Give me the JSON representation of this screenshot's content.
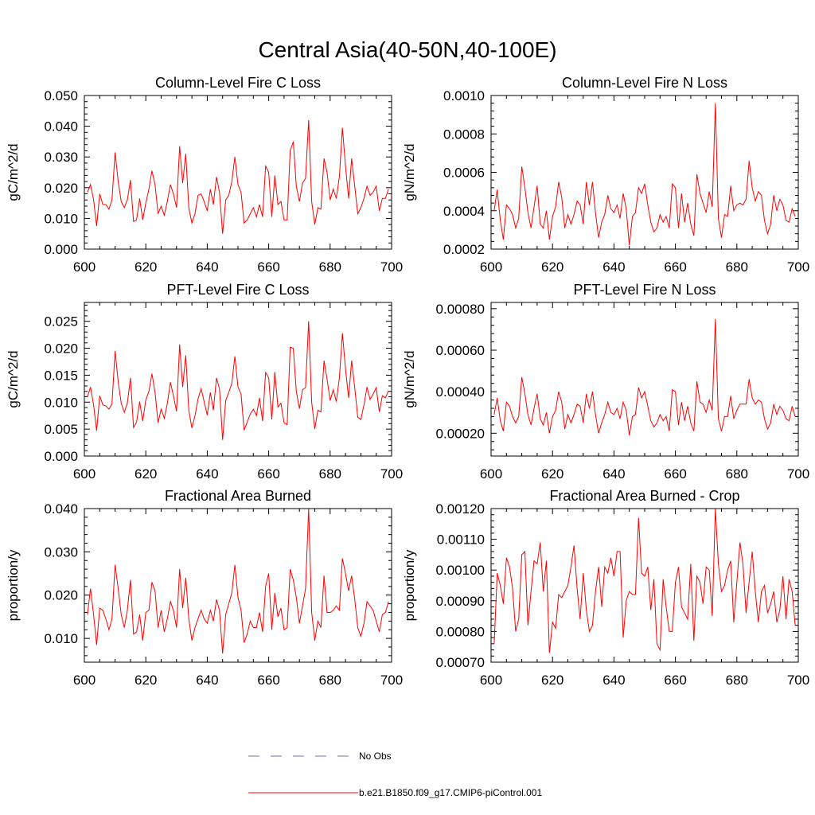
{
  "figure": {
    "title": "Central Asia(40-50N,40-100E)"
  },
  "legend": {
    "items": [
      {
        "label": "No Obs",
        "color": "#6b6bd6",
        "style": "dashed"
      },
      {
        "label": "b.e21.B1850.f09_g17.CMIP6-piControl.001",
        "color": "#ff0000",
        "style": "solid"
      }
    ]
  },
  "chart_data": [
    {
      "type": "line",
      "title": "Column-Level Fire C Loss",
      "ylabel": "gC/m^2/d",
      "xlim": [
        600,
        700
      ],
      "ylim": [
        0,
        0.05
      ],
      "xticks": [
        600,
        620,
        640,
        660,
        680,
        700
      ],
      "xtick_labels": [
        "600",
        "620",
        "640",
        "660",
        "680",
        "700"
      ],
      "yticks": [
        0,
        0.01,
        0.02,
        0.03,
        0.04,
        0.05
      ],
      "ytick_labels": [
        "0.000",
        "0.010",
        "0.020",
        "0.030",
        "0.040",
        "0.050"
      ],
      "x_start": 601,
      "series": [
        {
          "color": "#ff0000",
          "values": [
            0.0185,
            0.021,
            0.016,
            0.0075,
            0.018,
            0.0145,
            0.0145,
            0.013,
            0.016,
            0.0315,
            0.022,
            0.0155,
            0.0135,
            0.016,
            0.0225,
            0.009,
            0.0095,
            0.0165,
            0.0095,
            0.015,
            0.0195,
            0.0255,
            0.021,
            0.0115,
            0.014,
            0.011,
            0.0155,
            0.021,
            0.018,
            0.0135,
            0.0335,
            0.0215,
            0.031,
            0.0135,
            0.0085,
            0.0115,
            0.0175,
            0.018,
            0.0155,
            0.0125,
            0.0195,
            0.0145,
            0.0235,
            0.0185,
            0.005,
            0.016,
            0.0175,
            0.022,
            0.03,
            0.021,
            0.0185,
            0.0085,
            0.0095,
            0.0115,
            0.0135,
            0.0105,
            0.0145,
            0.0105,
            0.027,
            0.025,
            0.0105,
            0.024,
            0.0145,
            0.0155,
            0.0095,
            0.0095,
            0.032,
            0.035,
            0.0205,
            0.0155,
            0.0215,
            0.023,
            0.042,
            0.0155,
            0.008,
            0.0135,
            0.013,
            0.0295,
            0.025,
            0.016,
            0.0195,
            0.0165,
            0.0235,
            0.0395,
            0.027,
            0.0165,
            0.0295,
            0.0205,
            0.0115,
            0.0135,
            0.0165,
            0.0205,
            0.0175,
            0.0185,
            0.0205,
            0.0125,
            0.0165,
            0.0165,
            0.0195
          ]
        }
      ]
    },
    {
      "type": "line",
      "title": "Column-Level Fire N Loss",
      "ylabel": "gN/m^2/d",
      "xlim": [
        600,
        700
      ],
      "ylim": [
        0.0002,
        0.001
      ],
      "xticks": [
        600,
        620,
        640,
        660,
        680,
        700
      ],
      "xtick_labels": [
        "600",
        "620",
        "640",
        "660",
        "680",
        "700"
      ],
      "yticks": [
        0.0002,
        0.0004,
        0.0006,
        0.0008,
        0.001
      ],
      "ytick_labels": [
        "0.0002",
        "0.0004",
        "0.0006",
        "0.0008",
        "0.0010"
      ],
      "x_start": 601,
      "series": [
        {
          "color": "#ff0000",
          "values": [
            0.0004,
            0.00051,
            0.00035,
            0.00025,
            0.00043,
            0.00041,
            0.00038,
            0.00031,
            0.00036,
            0.00063,
            0.00052,
            0.00039,
            0.00031,
            0.00042,
            0.00053,
            0.00033,
            0.00031,
            0.0004,
            0.00025,
            0.00037,
            0.00042,
            0.00055,
            0.00047,
            0.00031,
            0.00038,
            0.00033,
            0.00038,
            0.00045,
            0.00043,
            0.00033,
            0.00055,
            0.00043,
            0.00055,
            0.00039,
            0.00026,
            0.00034,
            0.00038,
            0.00048,
            0.00041,
            0.00039,
            0.00043,
            0.00036,
            0.00049,
            0.00041,
            0.00022,
            0.00037,
            0.00039,
            0.00052,
            0.00049,
            0.00054,
            0.00043,
            0.00034,
            0.00029,
            0.00031,
            0.00038,
            0.00034,
            0.00037,
            0.00031,
            0.00054,
            0.00052,
            0.00031,
            0.00049,
            0.00034,
            0.00044,
            0.00033,
            0.00027,
            0.00059,
            0.00049,
            0.00044,
            0.00039,
            0.0005,
            0.00042,
            0.00096,
            0.00036,
            0.00026,
            0.00038,
            0.00037,
            0.00053,
            0.0004,
            0.00043,
            0.00044,
            0.00043,
            0.00046,
            0.00066,
            0.00052,
            0.00045,
            0.0005,
            0.00048,
            0.00035,
            0.00028,
            0.00033,
            0.00048,
            0.0004,
            0.00046,
            0.00043,
            0.00035,
            0.00034,
            0.00041,
            0.00037
          ]
        }
      ]
    },
    {
      "type": "line",
      "title": "PFT-Level Fire C Loss",
      "ylabel": "gC/m^2/d",
      "xlim": [
        600,
        700
      ],
      "ylim": [
        0,
        0.0285
      ],
      "xticks": [
        600,
        620,
        640,
        660,
        680,
        700
      ],
      "xtick_labels": [
        "600",
        "620",
        "640",
        "660",
        "680",
        "700"
      ],
      "yticks": [
        0,
        0.005,
        0.01,
        0.015,
        0.02,
        0.025
      ],
      "ytick_labels": [
        "0.000",
        "0.005",
        "0.010",
        "0.015",
        "0.020",
        "0.025"
      ],
      "x_start": 601,
      "series": [
        {
          "color": "#ff0000",
          "values": [
            0.011,
            0.0128,
            0.0095,
            0.0047,
            0.0112,
            0.0095,
            0.0093,
            0.0087,
            0.0097,
            0.0195,
            0.0138,
            0.0098,
            0.0081,
            0.0098,
            0.0145,
            0.0053,
            0.0063,
            0.0101,
            0.0065,
            0.0104,
            0.012,
            0.0153,
            0.0118,
            0.0062,
            0.0087,
            0.007,
            0.0097,
            0.0137,
            0.0112,
            0.0083,
            0.0207,
            0.0128,
            0.0187,
            0.0085,
            0.0052,
            0.0075,
            0.0106,
            0.0125,
            0.0101,
            0.0076,
            0.0118,
            0.0085,
            0.0145,
            0.0125,
            0.003,
            0.0103,
            0.0118,
            0.0135,
            0.0185,
            0.0128,
            0.0115,
            0.0048,
            0.0063,
            0.0078,
            0.0087,
            0.0075,
            0.0108,
            0.0065,
            0.0155,
            0.0145,
            0.0068,
            0.0156,
            0.0091,
            0.0098,
            0.0062,
            0.0058,
            0.0202,
            0.02,
            0.012,
            0.0088,
            0.0123,
            0.0127,
            0.025,
            0.01,
            0.005,
            0.0085,
            0.0082,
            0.0177,
            0.0143,
            0.0103,
            0.0123,
            0.0101,
            0.0145,
            0.0228,
            0.0162,
            0.0108,
            0.0177,
            0.0127,
            0.0072,
            0.0068,
            0.0095,
            0.0128,
            0.0105,
            0.0115,
            0.0127,
            0.0082,
            0.0112,
            0.0108,
            0.0121
          ]
        }
      ]
    },
    {
      "type": "line",
      "title": "PFT-Level Fire N Loss",
      "ylabel": "gN/m^2/d",
      "xlim": [
        600,
        700
      ],
      "ylim": [
        9e-05,
        0.00083
      ],
      "xticks": [
        600,
        620,
        640,
        660,
        680,
        700
      ],
      "xtick_labels": [
        "600",
        "620",
        "640",
        "660",
        "680",
        "700"
      ],
      "yticks": [
        0.0002,
        0.0004,
        0.0006,
        0.0008
      ],
      "ytick_labels": [
        "0.00020",
        "0.00040",
        "0.00060",
        "0.00080"
      ],
      "x_start": 601,
      "series": [
        {
          "color": "#ff0000",
          "values": [
            0.00029,
            0.00037,
            0.00026,
            0.00021,
            0.00035,
            0.00033,
            0.00028,
            0.00025,
            0.00028,
            0.00047,
            0.00039,
            0.00029,
            0.00024,
            0.00032,
            0.00039,
            0.00027,
            0.00024,
            0.0003,
            0.0002,
            0.00028,
            0.00031,
            0.0004,
            0.00035,
            0.00022,
            0.00029,
            0.00025,
            0.00029,
            0.00034,
            0.00033,
            0.00025,
            0.00039,
            0.00032,
            0.0004,
            0.00029,
            0.0002,
            0.00025,
            0.00029,
            0.00035,
            0.0003,
            0.00029,
            0.00032,
            0.00027,
            0.00035,
            0.00031,
            0.00019,
            0.00028,
            0.00029,
            0.00042,
            0.00037,
            0.0004,
            0.00033,
            0.00026,
            0.00023,
            0.00025,
            0.00029,
            0.00026,
            0.00028,
            0.00021,
            0.00041,
            0.0004,
            0.00024,
            0.00035,
            0.00026,
            0.00033,
            0.00025,
            0.00021,
            0.00045,
            0.00035,
            0.00034,
            0.0003,
            0.00036,
            0.00031,
            0.00075,
            0.00027,
            0.00021,
            0.00028,
            0.00028,
            0.00038,
            0.00027,
            0.00031,
            0.00034,
            0.00034,
            0.00034,
            0.00046,
            0.00037,
            0.00034,
            0.00036,
            0.00035,
            0.00027,
            0.00022,
            0.00025,
            0.00034,
            0.00029,
            0.00033,
            0.00031,
            0.00027,
            0.00026,
            0.00033,
            0.00028
          ]
        }
      ]
    },
    {
      "type": "line",
      "title": "Fractional Area Burned",
      "ylabel": "proportion/y",
      "xlim": [
        600,
        700
      ],
      "ylim": [
        0.0045,
        0.04
      ],
      "xticks": [
        600,
        620,
        640,
        660,
        680,
        700
      ],
      "xtick_labels": [
        "600",
        "620",
        "640",
        "660",
        "680",
        "700"
      ],
      "yticks": [
        0.01,
        0.02,
        0.03,
        0.04
      ],
      "ytick_labels": [
        "0.010",
        "0.020",
        "0.030",
        "0.040"
      ],
      "x_start": 601,
      "series": [
        {
          "color": "#ff0000",
          "values": [
            0.0155,
            0.0215,
            0.0155,
            0.0085,
            0.017,
            0.0165,
            0.0145,
            0.012,
            0.0145,
            0.027,
            0.0215,
            0.0155,
            0.0125,
            0.0165,
            0.0235,
            0.011,
            0.0115,
            0.0155,
            0.0095,
            0.016,
            0.0165,
            0.023,
            0.021,
            0.0125,
            0.0165,
            0.0115,
            0.0145,
            0.0185,
            0.0165,
            0.0125,
            0.026,
            0.017,
            0.024,
            0.0145,
            0.0095,
            0.0125,
            0.0145,
            0.0165,
            0.0145,
            0.0135,
            0.0165,
            0.014,
            0.019,
            0.0165,
            0.0065,
            0.0155,
            0.018,
            0.0205,
            0.027,
            0.0195,
            0.0165,
            0.009,
            0.011,
            0.014,
            0.0125,
            0.0125,
            0.016,
            0.0115,
            0.022,
            0.025,
            0.012,
            0.0205,
            0.015,
            0.017,
            0.012,
            0.0125,
            0.026,
            0.0235,
            0.0195,
            0.0135,
            0.0175,
            0.0215,
            0.04,
            0.016,
            0.0095,
            0.014,
            0.0125,
            0.0245,
            0.016,
            0.016,
            0.0165,
            0.0175,
            0.0165,
            0.0285,
            0.025,
            0.021,
            0.0245,
            0.019,
            0.0125,
            0.0105,
            0.0135,
            0.0185,
            0.0175,
            0.0165,
            0.014,
            0.0115,
            0.0155,
            0.016,
            0.0185
          ]
        }
      ]
    },
    {
      "type": "line",
      "title": "Fractional Area Burned - Crop",
      "ylabel": "proportion/y",
      "xlim": [
        600,
        700
      ],
      "ylim": [
        0.0007,
        0.0012
      ],
      "xticks": [
        600,
        620,
        640,
        660,
        680,
        700
      ],
      "xtick_labels": [
        "600",
        "620",
        "640",
        "660",
        "680",
        "700"
      ],
      "yticks": [
        0.0007,
        0.0008,
        0.0009,
        0.001,
        0.0011,
        0.0012
      ],
      "ytick_labels": [
        "0.00070",
        "0.00080",
        "0.00090",
        "0.00100",
        "0.00110",
        "0.00120"
      ],
      "x_start": 601,
      "series": [
        {
          "color": "#ff0000",
          "values": [
            0.00076,
            0.00099,
            0.00095,
            0.00089,
            0.00104,
            0.00101,
            0.00094,
            0.0008,
            0.00084,
            0.00105,
            0.00106,
            0.00082,
            0.00093,
            0.00103,
            0.00102,
            0.00109,
            0.00093,
            0.00103,
            0.00073,
            0.00083,
            0.00081,
            0.00092,
            0.00091,
            0.00093,
            0.00095,
            0.00101,
            0.00108,
            0.00094,
            0.00084,
            0.00099,
            0.00087,
            0.0008,
            0.00082,
            0.00093,
            0.00101,
            0.00088,
            0.00101,
            0.00099,
            0.00104,
            0.00098,
            0.00106,
            0.00106,
            0.00078,
            0.0009,
            0.00093,
            0.00092,
            0.00092,
            0.00117,
            0.00099,
            0.00098,
            0.00101,
            0.00087,
            0.00097,
            0.00076,
            0.00074,
            0.00097,
            0.00088,
            0.0008,
            0.0008,
            0.00096,
            0.00101,
            0.00088,
            0.00086,
            0.00084,
            0.00102,
            0.00077,
            0.00098,
            0.00096,
            0.00089,
            0.00101,
            0.001,
            0.00085,
            0.0012,
            0.00102,
            0.00093,
            0.00095,
            0.001,
            0.00103,
            0.00083,
            0.00096,
            0.00109,
            0.00102,
            0.00086,
            0.00096,
            0.00106,
            0.00093,
            0.00083,
            0.00093,
            0.00095,
            0.00086,
            0.00089,
            0.00093,
            0.00083,
            0.00087,
            0.00098,
            0.00084,
            0.00097,
            0.00093,
            0.00082
          ]
        }
      ]
    }
  ]
}
